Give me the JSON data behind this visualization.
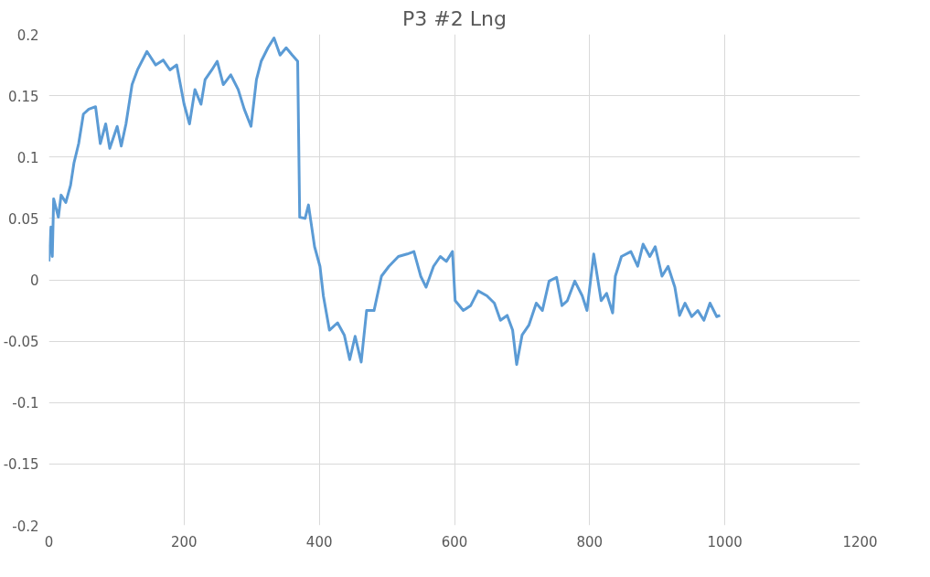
{
  "chart_data": {
    "type": "line",
    "title": "P3 #2 Lng",
    "x": [
      0,
      3,
      5,
      7,
      14,
      18,
      25,
      32,
      37,
      44,
      51,
      59,
      69,
      76,
      84,
      90,
      101,
      107,
      114,
      123,
      131,
      145,
      158,
      169,
      179,
      189,
      200,
      208,
      216,
      225,
      231,
      241,
      249,
      258,
      269,
      280,
      289,
      299,
      307,
      314,
      324,
      333,
      342,
      351,
      360,
      368,
      371,
      379,
      384,
      393,
      401,
      406,
      415,
      427,
      437,
      445,
      453,
      462,
      470,
      481,
      492,
      503,
      517,
      530,
      540,
      550,
      558,
      569,
      579,
      588,
      597,
      601,
      613,
      624,
      635,
      648,
      659,
      668,
      678,
      686,
      692,
      700,
      710,
      721,
      730,
      740,
      751,
      759,
      767,
      778,
      789,
      796,
      806,
      817,
      825,
      834,
      838,
      847,
      861,
      871,
      879,
      889,
      897,
      907,
      916,
      926,
      933,
      941,
      951,
      960,
      969,
      978,
      988,
      993
    ],
    "series": [
      {
        "color": "#5b9bd5",
        "values": [
          0.015,
          0.043,
          0.019,
          0.066,
          0.051,
          0.069,
          0.063,
          0.077,
          0.095,
          0.111,
          0.135,
          0.139,
          0.141,
          0.111,
          0.127,
          0.107,
          0.125,
          0.109,
          0.127,
          0.159,
          0.171,
          0.186,
          0.175,
          0.179,
          0.171,
          0.175,
          0.143,
          0.127,
          0.155,
          0.143,
          0.163,
          0.171,
          0.178,
          0.159,
          0.167,
          0.155,
          0.139,
          0.125,
          0.163,
          0.178,
          0.189,
          0.197,
          0.183,
          0.189,
          0.183,
          0.178,
          0.051,
          0.05,
          0.061,
          0.027,
          0.011,
          -0.013,
          -0.041,
          -0.035,
          -0.045,
          -0.065,
          -0.046,
          -0.067,
          -0.025,
          -0.025,
          0.003,
          0.011,
          0.019,
          0.021,
          0.023,
          0.003,
          -0.006,
          0.011,
          0.019,
          0.015,
          0.023,
          -0.017,
          -0.025,
          -0.021,
          -0.009,
          -0.013,
          -0.019,
          -0.033,
          -0.029,
          -0.041,
          -0.069,
          -0.045,
          -0.037,
          -0.019,
          -0.025,
          -0.001,
          0.002,
          -0.021,
          -0.017,
          -0.001,
          -0.013,
          -0.025,
          0.021,
          -0.017,
          -0.011,
          -0.027,
          0.003,
          0.019,
          0.023,
          0.011,
          0.029,
          0.019,
          0.027,
          0.003,
          0.011,
          -0.006,
          -0.029,
          -0.019,
          -0.03,
          -0.025,
          -0.033,
          -0.019,
          -0.03,
          -0.029
        ]
      }
    ],
    "xlim": [
      0,
      1200
    ],
    "xticks": [
      0,
      200,
      400,
      600,
      800,
      1000,
      1200
    ],
    "ylim": [
      -0.2,
      0.2
    ],
    "yticks": [
      {
        "value": -0.2,
        "label": "-0.2"
      },
      {
        "value": -0.15,
        "label": "-0.15"
      },
      {
        "value": -0.1,
        "label": "-0.1"
      },
      {
        "value": -0.05,
        "label": "-0.05"
      },
      {
        "value": 0,
        "label": "0"
      },
      {
        "value": 0.05,
        "label": "0.05"
      },
      {
        "value": 0.1,
        "label": "0.1"
      },
      {
        "value": 0.15,
        "label": "0.15"
      },
      {
        "value": 0.2,
        "label": "0.2"
      }
    ],
    "grid": true,
    "marker": "none",
    "line_style": "solid"
  }
}
